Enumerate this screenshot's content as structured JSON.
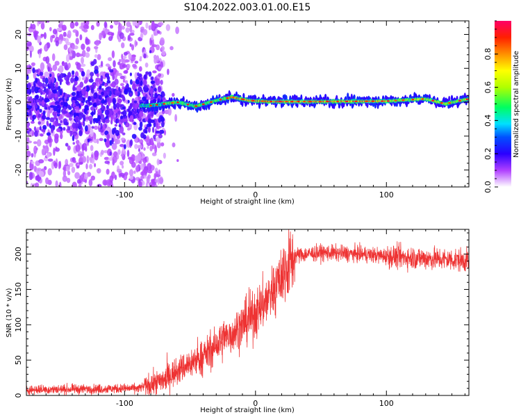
{
  "title": "S104.2022.003.01.00.E15",
  "chart_data": [
    {
      "type": "heatmap",
      "xlabel": "Height of straight line (km)",
      "ylabel": "Frequency (Hz)",
      "xlim": [
        -175,
        163
      ],
      "ylim": [
        -25,
        24
      ],
      "x_ticks": [
        -100,
        0,
        100
      ],
      "y_ticks": [
        -20,
        -10,
        0,
        10,
        20
      ],
      "colorbar": {
        "label": "Normalized spectral amplitude",
        "range": [
          0,
          1
        ],
        "ticks": [
          0.0,
          0.2,
          0.4,
          0.6,
          0.8
        ]
      },
      "ridge_frequency": [
        {
          "x": -80,
          "y": -1.0
        },
        {
          "x": -60,
          "y": 0.0
        },
        {
          "x": -45,
          "y": -1.2
        },
        {
          "x": -30,
          "y": 0.5
        },
        {
          "x": -18,
          "y": 1.5
        },
        {
          "x": -5,
          "y": 0.5
        },
        {
          "x": 10,
          "y": 0.2
        },
        {
          "x": 50,
          "y": 0.2
        },
        {
          "x": 100,
          "y": 0.3
        },
        {
          "x": 130,
          "y": 1.0
        },
        {
          "x": 145,
          "y": -0.5
        },
        {
          "x": 163,
          "y": 1.0
        }
      ],
      "noise_region": {
        "x_from": -175,
        "x_to": -70,
        "y_from": -25,
        "y_to": 24
      }
    },
    {
      "type": "line",
      "xlabel": "Height of straight line (km)",
      "ylabel": "SNR (10 * v/v)",
      "xlim": [
        -175,
        163
      ],
      "ylim": [
        0,
        235
      ],
      "x_ticks": [
        -100,
        0,
        100
      ],
      "y_ticks": [
        0,
        50,
        100,
        150,
        200
      ],
      "series": [
        {
          "color": "#ee3333",
          "trend": [
            {
              "x": -175,
              "y": 8
            },
            {
              "x": -90,
              "y": 10
            },
            {
              "x": -80,
              "y": 15
            },
            {
              "x": -70,
              "y": 22
            },
            {
              "x": -60,
              "y": 35
            },
            {
              "x": -50,
              "y": 45
            },
            {
              "x": -40,
              "y": 55
            },
            {
              "x": -30,
              "y": 70
            },
            {
              "x": -20,
              "y": 85
            },
            {
              "x": -10,
              "y": 100
            },
            {
              "x": 0,
              "y": 115
            },
            {
              "x": 10,
              "y": 140
            },
            {
              "x": 20,
              "y": 170
            },
            {
              "x": 30,
              "y": 198
            },
            {
              "x": 50,
              "y": 202
            },
            {
              "x": 80,
              "y": 200
            },
            {
              "x": 100,
              "y": 197
            },
            {
              "x": 120,
              "y": 195
            },
            {
              "x": 140,
              "y": 193
            },
            {
              "x": 163,
              "y": 191
            }
          ]
        }
      ]
    }
  ]
}
